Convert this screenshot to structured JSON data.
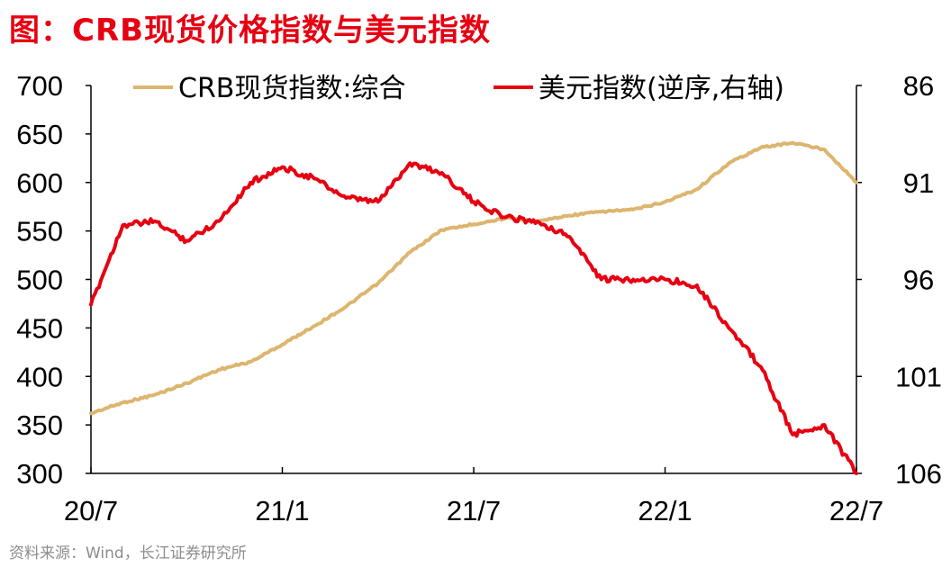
{
  "title": "图：CRB现货价格指数与美元指数",
  "source": "资料来源：Wind，长江证券研究所",
  "chart_data": {
    "type": "line",
    "x_ticks": [
      "20/7",
      "21/1",
      "21/7",
      "22/1",
      "22/7"
    ],
    "x_range": [
      "2020-07",
      "2022-07"
    ],
    "left_axis": {
      "ticks": [
        700,
        650,
        600,
        550,
        500,
        450,
        400,
        350,
        300
      ],
      "ylim": [
        300,
        700
      ]
    },
    "right_axis": {
      "ticks": [
        86,
        91,
        96,
        101,
        106
      ],
      "ylim": [
        86,
        106
      ],
      "inverted": true
    },
    "grid": false,
    "legend_placement": "top",
    "series": [
      {
        "name": "CRB现货指数:综合",
        "axis": "left",
        "color": "#dcb56e",
        "points": [
          [
            "2020-07",
            362
          ],
          [
            "2020-08",
            373
          ],
          [
            "2020-09",
            381
          ],
          [
            "2020-10",
            393
          ],
          [
            "2020-11",
            407
          ],
          [
            "2020-12",
            415
          ],
          [
            "2021-01",
            433
          ],
          [
            "2021-02",
            452
          ],
          [
            "2021-03",
            472
          ],
          [
            "2021-04",
            496
          ],
          [
            "2021-05",
            528
          ],
          [
            "2021-06",
            551
          ],
          [
            "2021-07",
            557
          ],
          [
            "2021-08",
            563
          ],
          [
            "2021-09",
            560
          ],
          [
            "2021-10",
            566
          ],
          [
            "2021-11",
            570
          ],
          [
            "2021-12",
            572
          ],
          [
            "2022-01",
            580
          ],
          [
            "2022-02",
            593
          ],
          [
            "2022-03",
            620
          ],
          [
            "2022-04",
            636
          ],
          [
            "2022-05",
            641
          ],
          [
            "2022-06",
            634
          ],
          [
            "2022-07",
            600
          ]
        ]
      },
      {
        "name": "美元指数(逆序,右轴)",
        "axis": "right",
        "color": "#e60012",
        "points": [
          [
            "2020-07",
            97.3
          ],
          [
            "2020-08",
            93.2
          ],
          [
            "2020-09",
            93.0
          ],
          [
            "2020-10",
            94.0
          ],
          [
            "2020-11",
            93.0
          ],
          [
            "2020-12",
            91.0
          ],
          [
            "2021-01",
            90.2
          ],
          [
            "2021-02",
            90.8
          ],
          [
            "2021-03",
            91.8
          ],
          [
            "2021-04",
            92.0
          ],
          [
            "2021-05",
            90.0
          ],
          [
            "2021-06",
            90.5
          ],
          [
            "2021-07",
            92.0
          ],
          [
            "2021-08",
            92.8
          ],
          [
            "2021-09",
            93.0
          ],
          [
            "2021-10",
            93.8
          ],
          [
            "2021-11",
            96.0
          ],
          [
            "2021-12",
            96.0
          ],
          [
            "2022-01",
            96.0
          ],
          [
            "2022-02",
            96.3
          ],
          [
            "2022-03",
            98.5
          ],
          [
            "2022-04",
            100.5
          ],
          [
            "2022-05",
            104.0
          ],
          [
            "2022-06",
            103.5
          ],
          [
            "2022-07",
            106.0
          ]
        ]
      }
    ]
  }
}
